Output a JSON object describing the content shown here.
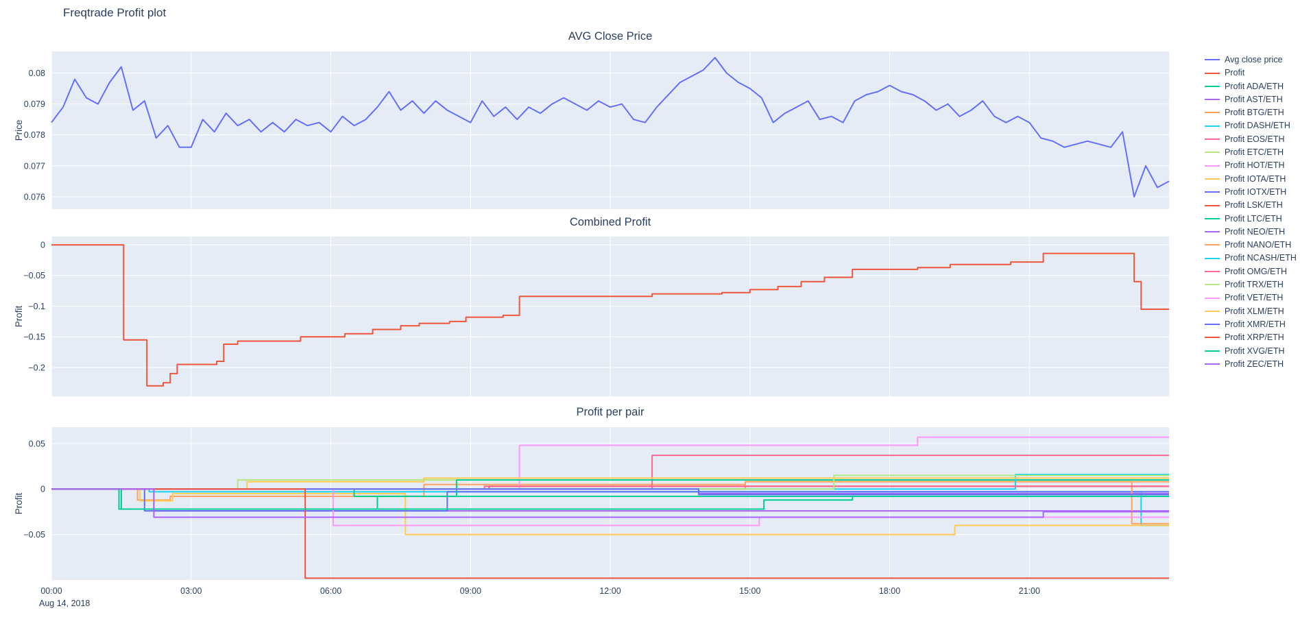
{
  "page": {
    "title": "Freqtrade Profit plot"
  },
  "colors": {
    "page_background": "#ffffff",
    "plot_background": "#e5ecf6",
    "grid": "#ffffff",
    "text": "#2a3f5f"
  },
  "xaxis": {
    "range": [
      0,
      24
    ],
    "tick_hours": [
      0,
      3,
      6,
      9,
      12,
      15,
      18,
      21
    ],
    "tick_labels": [
      "00:00",
      "03:00",
      "06:00",
      "09:00",
      "12:00",
      "15:00",
      "18:00",
      "21:00"
    ],
    "date_label": "Aug 14, 2018"
  },
  "legend": {
    "items": [
      {
        "label": "Avg close price",
        "color": "#636efa"
      },
      {
        "label": "Profit",
        "color": "#EF553B"
      },
      {
        "label": "Profit ADA/ETH",
        "color": "#00cc96"
      },
      {
        "label": "Profit AST/ETH",
        "color": "#ab63fa"
      },
      {
        "label": "Profit BTG/ETH",
        "color": "#FFA15A"
      },
      {
        "label": "Profit DASH/ETH",
        "color": "#19d3f3"
      },
      {
        "label": "Profit EOS/ETH",
        "color": "#FF6692"
      },
      {
        "label": "Profit ETC/ETH",
        "color": "#B6E880"
      },
      {
        "label": "Profit HOT/ETH",
        "color": "#FF97FF"
      },
      {
        "label": "Profit IOTA/ETH",
        "color": "#FECB52"
      },
      {
        "label": "Profit IOTX/ETH",
        "color": "#636efa"
      },
      {
        "label": "Profit LSK/ETH",
        "color": "#EF553B"
      },
      {
        "label": "Profit LTC/ETH",
        "color": "#00cc96"
      },
      {
        "label": "Profit NEO/ETH",
        "color": "#ab63fa"
      },
      {
        "label": "Profit NANO/ETH",
        "color": "#FFA15A"
      },
      {
        "label": "Profit NCASH/ETH",
        "color": "#19d3f3"
      },
      {
        "label": "Profit OMG/ETH",
        "color": "#FF6692"
      },
      {
        "label": "Profit TRX/ETH",
        "color": "#B6E880"
      },
      {
        "label": "Profit VET/ETH",
        "color": "#FF97FF"
      },
      {
        "label": "Profit XLM/ETH",
        "color": "#FECB52"
      },
      {
        "label": "Profit XMR/ETH",
        "color": "#636efa"
      },
      {
        "label": "Profit XRP/ETH",
        "color": "#EF553B"
      },
      {
        "label": "Profit XVG/ETH",
        "color": "#00cc96"
      },
      {
        "label": "Profit ZEC/ETH",
        "color": "#ab63fa"
      }
    ]
  },
  "chart_data": [
    {
      "type": "line",
      "title": "AVG Close Price",
      "ylabel": "Price",
      "xlabel": "",
      "ylim": [
        0.0756,
        0.0807
      ],
      "yticks": [
        0.076,
        0.077,
        0.078,
        0.079,
        0.08
      ],
      "ytick_labels": [
        "0.076",
        "0.077",
        "0.078",
        "0.079",
        "0.08"
      ],
      "grid": true,
      "series": [
        {
          "name": "Avg close price",
          "color": "#636efa",
          "mode": "linear",
          "x0": 0,
          "dx": 0.25,
          "y": [
            0.0784,
            0.0789,
            0.0798,
            0.0792,
            0.079,
            0.0797,
            0.0802,
            0.0788,
            0.0791,
            0.0779,
            0.0783,
            0.0776,
            0.0776,
            0.0785,
            0.0781,
            0.0787,
            0.0783,
            0.0785,
            0.0781,
            0.0784,
            0.0781,
            0.0785,
            0.0783,
            0.0784,
            0.0781,
            0.0786,
            0.0783,
            0.0785,
            0.0789,
            0.0794,
            0.0788,
            0.0791,
            0.0787,
            0.0791,
            0.0788,
            0.0786,
            0.0784,
            0.0791,
            0.0786,
            0.0789,
            0.0785,
            0.0789,
            0.0787,
            0.079,
            0.0792,
            0.079,
            0.0788,
            0.0791,
            0.0789,
            0.079,
            0.0785,
            0.0784,
            0.0789,
            0.0793,
            0.0797,
            0.0799,
            0.0801,
            0.0805,
            0.08,
            0.0797,
            0.0795,
            0.0792,
            0.0784,
            0.0787,
            0.0789,
            0.0791,
            0.0785,
            0.0786,
            0.0784,
            0.0791,
            0.0793,
            0.0794,
            0.0796,
            0.0794,
            0.0793,
            0.0791,
            0.0788,
            0.079,
            0.0786,
            0.0788,
            0.0791,
            0.0786,
            0.0784,
            0.0786,
            0.0784,
            0.0779,
            0.0778,
            0.0776,
            0.0777,
            0.0778,
            0.0777,
            0.0776,
            0.0781,
            0.076,
            0.077,
            0.0763,
            0.0765
          ]
        }
      ]
    },
    {
      "type": "line",
      "title": "Combined Profit",
      "ylabel": "Profit",
      "xlabel": "",
      "ylim": [
        -0.247,
        0.0135
      ],
      "yticks": [
        0,
        -0.05,
        -0.1,
        -0.15,
        -0.2
      ],
      "ytick_labels": [
        "0",
        "−0.05",
        "−0.1",
        "−0.15",
        "−0.2"
      ],
      "grid": true,
      "series": [
        {
          "name": "Profit",
          "color": "#EF553B",
          "mode": "step",
          "points": [
            [
              0,
              0
            ],
            [
              1.55,
              -0.155
            ],
            [
              2.05,
              -0.23
            ],
            [
              2.4,
              -0.225
            ],
            [
              2.55,
              -0.21
            ],
            [
              2.7,
              -0.195
            ],
            [
              3.55,
              -0.19
            ],
            [
              3.7,
              -0.162
            ],
            [
              4.0,
              -0.157
            ],
            [
              5.35,
              -0.15
            ],
            [
              6.3,
              -0.145
            ],
            [
              6.9,
              -0.138
            ],
            [
              7.5,
              -0.132
            ],
            [
              7.9,
              -0.128
            ],
            [
              8.55,
              -0.125
            ],
            [
              8.9,
              -0.118
            ],
            [
              9.7,
              -0.115
            ],
            [
              10.05,
              -0.084
            ],
            [
              12.9,
              -0.08
            ],
            [
              14.4,
              -0.078
            ],
            [
              15.0,
              -0.073
            ],
            [
              15.6,
              -0.068
            ],
            [
              16.1,
              -0.06
            ],
            [
              16.6,
              -0.053
            ],
            [
              17.2,
              -0.04
            ],
            [
              18.6,
              -0.037
            ],
            [
              19.3,
              -0.032
            ],
            [
              20.6,
              -0.028
            ],
            [
              21.3,
              -0.014
            ],
            [
              23.25,
              -0.06
            ],
            [
              23.4,
              -0.105
            ],
            [
              24,
              -0.105
            ]
          ]
        }
      ]
    },
    {
      "type": "line",
      "title": "Profit per pair",
      "ylabel": "Profit",
      "xlabel": "",
      "ylim": [
        -0.1,
        0.068
      ],
      "yticks": [
        0.05,
        0,
        -0.05
      ],
      "ytick_labels": [
        "0.05",
        "0",
        "−0.05"
      ],
      "grid": true,
      "series": [
        {
          "name": "Profit ADA/ETH",
          "color": "#00cc96",
          "mode": "step",
          "points": [
            [
              0,
              0
            ],
            [
              1.45,
              -0.022
            ],
            [
              7.0,
              -0.008
            ],
            [
              24,
              -0.008
            ]
          ]
        },
        {
          "name": "Profit AST/ETH",
          "color": "#ab63fa",
          "mode": "step",
          "points": [
            [
              0,
              0
            ],
            [
              2.2,
              -0.024
            ],
            [
              24,
              -0.024
            ]
          ]
        },
        {
          "name": "Profit BTG/ETH",
          "color": "#FFA15A",
          "mode": "step",
          "points": [
            [
              0,
              0
            ],
            [
              1.85,
              -0.012
            ],
            [
              2.55,
              -0.008
            ],
            [
              8.0,
              0.005
            ],
            [
              14.9,
              0.008
            ],
            [
              24,
              0.008
            ]
          ]
        },
        {
          "name": "Profit DASH/ETH",
          "color": "#19d3f3",
          "mode": "step",
          "points": [
            [
              0,
              0
            ],
            [
              2.1,
              -0.003
            ],
            [
              23.4,
              -0.04
            ],
            [
              24,
              -0.04
            ]
          ]
        },
        {
          "name": "Profit EOS/ETH",
          "color": "#FF6692",
          "mode": "step",
          "points": [
            [
              0,
              0
            ],
            [
              12.9,
              0.037
            ],
            [
              24,
              0.037
            ]
          ]
        },
        {
          "name": "Profit ETC/ETH",
          "color": "#B6E880",
          "mode": "step",
          "points": [
            [
              0,
              0
            ],
            [
              4.0,
              0.01
            ],
            [
              24,
              0.01
            ]
          ]
        },
        {
          "name": "Profit HOT/ETH",
          "color": "#FF97FF",
          "mode": "step",
          "points": [
            [
              0,
              0
            ],
            [
              10.05,
              0.048
            ],
            [
              18.6,
              0.057
            ],
            [
              24,
              0.057
            ]
          ]
        },
        {
          "name": "Profit IOTA/ETH",
          "color": "#FECB52",
          "mode": "step",
          "points": [
            [
              0,
              0
            ],
            [
              1.9,
              -0.013
            ],
            [
              2.6,
              -0.005
            ],
            [
              7.6,
              -0.05
            ],
            [
              19.4,
              -0.04
            ],
            [
              24,
              -0.04
            ]
          ]
        },
        {
          "name": "Profit IOTX/ETH",
          "color": "#636efa",
          "mode": "step",
          "points": [
            [
              0,
              0
            ],
            [
              2.0,
              -0.024
            ],
            [
              8.5,
              -0.003
            ],
            [
              24,
              -0.003
            ]
          ]
        },
        {
          "name": "Profit LSK/ETH",
          "color": "#EF553B",
          "mode": "step",
          "points": [
            [
              0,
              0
            ],
            [
              9.4,
              0.003
            ],
            [
              24,
              0.003
            ]
          ]
        },
        {
          "name": "Profit LTC/ETH",
          "color": "#00cc96",
          "mode": "step",
          "points": [
            [
              0,
              0
            ],
            [
              6.5,
              -0.008
            ],
            [
              8.7,
              0.01
            ],
            [
              24,
              0.01
            ]
          ]
        },
        {
          "name": "Profit NEO/ETH",
          "color": "#ab63fa",
          "mode": "step",
          "points": [
            [
              0,
              0
            ],
            [
              13.9,
              -0.005
            ],
            [
              24,
              -0.005
            ]
          ]
        },
        {
          "name": "Profit NANO/ETH",
          "color": "#FFA15A",
          "mode": "step",
          "points": [
            [
              0,
              0
            ],
            [
              14.9,
              0.008
            ],
            [
              23.2,
              -0.038
            ],
            [
              24,
              -0.038
            ]
          ]
        },
        {
          "name": "Profit NCASH/ETH",
          "color": "#19d3f3",
          "mode": "step",
          "points": [
            [
              0,
              0
            ],
            [
              20.7,
              0.016
            ],
            [
              24,
              0.016
            ]
          ]
        },
        {
          "name": "Profit OMG/ETH",
          "color": "#FF6692",
          "mode": "step",
          "points": [
            [
              0,
              0
            ],
            [
              9.3,
              0.003
            ],
            [
              24,
              0.003
            ]
          ]
        },
        {
          "name": "Profit TRX/ETH",
          "color": "#B6E880",
          "mode": "step",
          "points": [
            [
              0,
              0
            ],
            [
              16.8,
              0.015
            ],
            [
              24,
              0.015
            ]
          ]
        },
        {
          "name": "Profit VET/ETH",
          "color": "#FF97FF",
          "mode": "step",
          "points": [
            [
              0,
              0
            ],
            [
              6.05,
              -0.04
            ],
            [
              15.2,
              -0.031
            ],
            [
              24,
              -0.031
            ]
          ]
        },
        {
          "name": "Profit XLM/ETH",
          "color": "#FECB52",
          "mode": "step",
          "points": [
            [
              0,
              0
            ],
            [
              4.2,
              0.008
            ],
            [
              8.0,
              0.012
            ],
            [
              24,
              0.012
            ]
          ]
        },
        {
          "name": "Profit XMR/ETH",
          "color": "#636efa",
          "mode": "step",
          "points": [
            [
              0,
              0
            ],
            [
              13.9,
              -0.006
            ],
            [
              24,
              -0.006
            ]
          ]
        },
        {
          "name": "Profit XRP/ETH",
          "color": "#EF553B",
          "mode": "step",
          "points": [
            [
              0,
              0
            ],
            [
              5.45,
              -0.098
            ],
            [
              24,
              -0.098
            ]
          ]
        },
        {
          "name": "Profit XVG/ETH",
          "color": "#00cc96",
          "mode": "step",
          "points": [
            [
              0,
              0
            ],
            [
              1.5,
              -0.022
            ],
            [
              15.3,
              -0.012
            ],
            [
              17.2,
              -0.008
            ],
            [
              24,
              -0.008
            ]
          ]
        },
        {
          "name": "Profit ZEC/ETH",
          "color": "#ab63fa",
          "mode": "step",
          "points": [
            [
              0,
              0
            ],
            [
              2.2,
              -0.031
            ],
            [
              21.3,
              -0.025
            ],
            [
              24,
              -0.025
            ]
          ]
        }
      ]
    }
  ]
}
